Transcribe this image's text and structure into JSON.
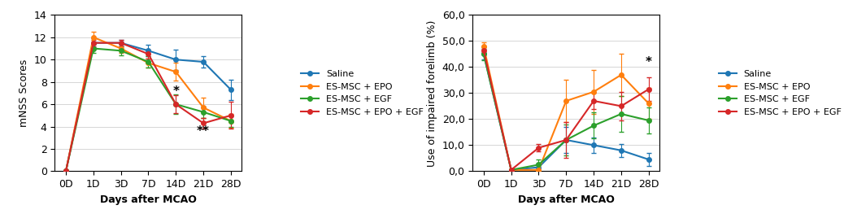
{
  "chart_data": [
    {
      "type": "line",
      "xlabel": "Days after MCAO",
      "ylabel": "mNSS Scores",
      "categories": [
        "0D",
        "1D",
        "3D",
        "7D",
        "14D",
        "21D",
        "28D"
      ],
      "ylim": [
        0,
        14
      ],
      "yticks": [
        0,
        2,
        4,
        6,
        8,
        10,
        12,
        14
      ],
      "grid": "y",
      "legend": "right",
      "marker": "circle",
      "series": [
        {
          "name": "Saline",
          "values": [
            0,
            11.5,
            11.5,
            10.8,
            10.0,
            9.8,
            7.3
          ],
          "yerr": [
            0,
            0.4,
            0.3,
            0.5,
            0.9,
            0.5,
            0.9
          ]
        },
        {
          "name": "ES-MSC + EPO",
          "values": [
            0,
            12.0,
            11.0,
            9.7,
            8.9,
            5.7,
            4.5
          ],
          "yerr": [
            0,
            0.5,
            0.4,
            0.4,
            0.8,
            0.9,
            0.6
          ]
        },
        {
          "name": "ES-MSC + EGF",
          "values": [
            0,
            11.0,
            10.8,
            9.8,
            6.0,
            5.3,
            4.5
          ],
          "yerr": [
            0,
            0.4,
            0.4,
            0.5,
            0.9,
            0.5,
            0.5
          ]
        },
        {
          "name": "ES-MSC + EPO + EGF",
          "values": [
            0,
            11.5,
            11.5,
            10.5,
            6.0,
            4.3,
            5.0
          ],
          "yerr": [
            0,
            0.3,
            0.3,
            0.4,
            0.8,
            0.5,
            1.2
          ]
        }
      ],
      "annotations": [
        {
          "text": "*",
          "x": "14D",
          "y": 6.6
        },
        {
          "text": "**",
          "x": "21D",
          "y": 3.0
        }
      ]
    },
    {
      "type": "line",
      "xlabel": "Days after MCAO",
      "ylabel": "Use of impaired forelimb (%)",
      "categories": [
        "0D",
        "1D",
        "3D",
        "7D",
        "14D",
        "21D",
        "28D"
      ],
      "ylim": [
        0.0,
        60.0
      ],
      "yticks": [
        {
          "value": 0.0,
          "label": "0,0"
        },
        {
          "value": 10.0,
          "label": "10,0"
        },
        {
          "value": 20.0,
          "label": "20,0"
        },
        {
          "value": 30.0,
          "label": "30,0"
        },
        {
          "value": 40.0,
          "label": "40,0"
        },
        {
          "value": 50.0,
          "label": "50,0"
        },
        {
          "value": 60.0,
          "label": "60,0"
        }
      ],
      "grid": "y",
      "legend": "right",
      "marker": "circle",
      "series": [
        {
          "name": "Saline",
          "values": [
            45.0,
            0.5,
            1.5,
            12.0,
            10.0,
            8.0,
            4.5
          ],
          "yerr": [
            2.0,
            0.3,
            1.5,
            5.0,
            3.0,
            2.5,
            2.5
          ]
        },
        {
          "name": "ES-MSC + EPO",
          "values": [
            48.0,
            0.5,
            0.5,
            27.0,
            30.5,
            37.0,
            26.0
          ],
          "yerr": [
            1.5,
            0.3,
            0.3,
            8.0,
            8.5,
            8.0,
            6.0
          ]
        },
        {
          "name": "ES-MSC + EGF",
          "values": [
            45.0,
            0.5,
            2.5,
            12.0,
            17.5,
            22.0,
            19.5
          ],
          "yerr": [
            2.5,
            0.3,
            2.0,
            6.0,
            5.0,
            7.0,
            5.0
          ]
        },
        {
          "name": "ES-MSC + EPO + EGF",
          "values": [
            46.5,
            0.5,
            9.0,
            12.0,
            27.0,
            25.0,
            31.5
          ],
          "yerr": [
            1.5,
            0.3,
            1.5,
            7.0,
            3.0,
            5.5,
            4.5
          ]
        }
      ],
      "annotations": [
        {
          "text": "*",
          "x": "28D",
          "y": 39.5
        }
      ]
    }
  ]
}
